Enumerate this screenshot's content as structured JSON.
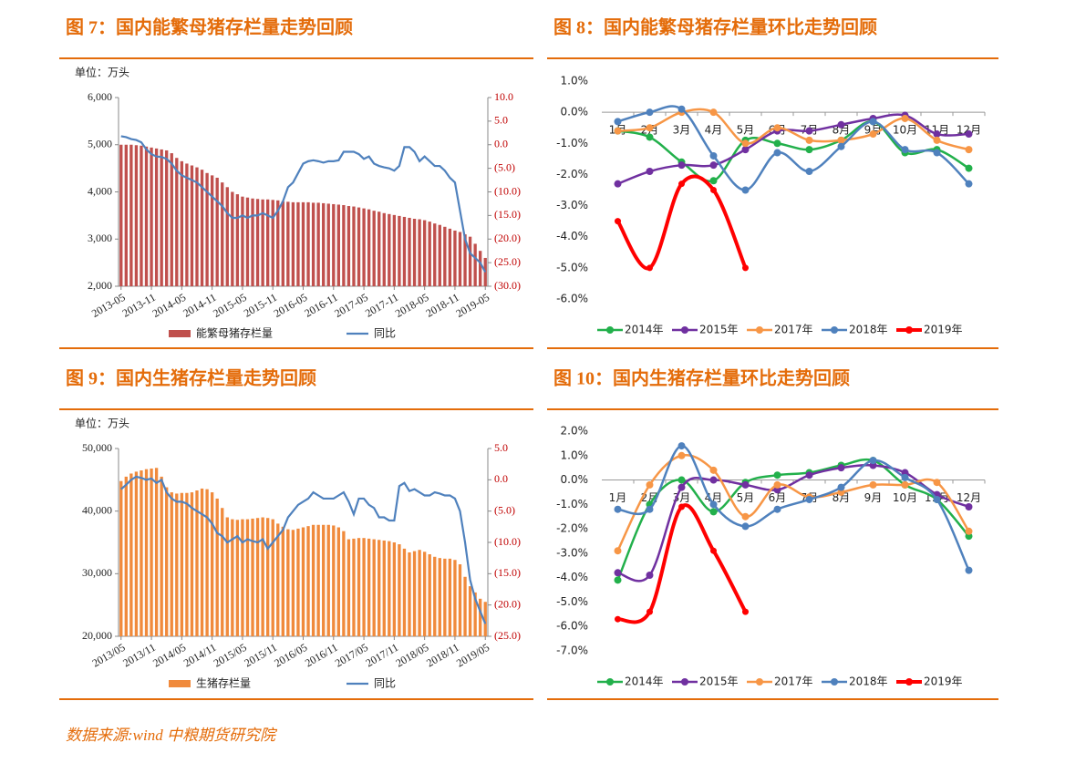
{
  "source": "数据来源:wind 中粮期货研究院",
  "chart_data": [
    {
      "type": "combo",
      "title": "图 7：国内能繁母猪存栏量走势回顾",
      "unit": "单位：万头",
      "categories": [
        "2013-05",
        null,
        null,
        null,
        null,
        null,
        "2013-11",
        null,
        null,
        null,
        null,
        null,
        "2014-05",
        null,
        null,
        null,
        null,
        null,
        "2014-11",
        null,
        null,
        null,
        null,
        null,
        "2015-05",
        null,
        null,
        null,
        null,
        null,
        "2015-11",
        null,
        null,
        null,
        null,
        null,
        "2016-05",
        null,
        null,
        null,
        null,
        null,
        "2016-11",
        null,
        null,
        null,
        null,
        null,
        "2017-05",
        null,
        null,
        null,
        null,
        null,
        "2017-11",
        null,
        null,
        null,
        null,
        null,
        "2018-05",
        null,
        null,
        null,
        null,
        null,
        "2018-11",
        null,
        null,
        null,
        null,
        null,
        "2019-05"
      ],
      "series": [
        {
          "name": "能繁母猪存栏量",
          "type": "bar",
          "color": "#c0504d",
          "values": [
            5000,
            5000,
            5000,
            4990,
            4980,
            4960,
            4940,
            4920,
            4900,
            4880,
            4820,
            4720,
            4650,
            4600,
            4560,
            4520,
            4470,
            4400,
            4350,
            4300,
            4200,
            4100,
            4000,
            3950,
            3900,
            3880,
            3860,
            3850,
            3840,
            3840,
            3830,
            3820,
            3800,
            3790,
            3780,
            3780,
            3780,
            3780,
            3770,
            3770,
            3760,
            3750,
            3740,
            3730,
            3720,
            3700,
            3690,
            3670,
            3650,
            3630,
            3600,
            3580,
            3550,
            3530,
            3510,
            3490,
            3470,
            3450,
            3430,
            3420,
            3400,
            3370,
            3330,
            3300,
            3260,
            3220,
            3180,
            3150,
            3100,
            3050,
            2900,
            2750,
            2600
          ]
        },
        {
          "name": "同比",
          "type": "line",
          "color": "#4f81bd",
          "axis": "y2",
          "values": [
            1.8,
            1.6,
            1.2,
            1.0,
            0.5,
            -1.0,
            -2.0,
            -2.5,
            -2.6,
            -3.0,
            -4.0,
            -5.5,
            -6.5,
            -7.0,
            -7.5,
            -8.0,
            -9.0,
            -10.0,
            -11.0,
            -12.0,
            -13.0,
            -14.5,
            -15.5,
            -15.5,
            -15.0,
            -15.5,
            -15.0,
            -15.0,
            -14.5,
            -15.0,
            -15.5,
            -14.0,
            -12.0,
            -9.0,
            -8.0,
            -6.0,
            -4.0,
            -3.5,
            -3.3,
            -3.5,
            -3.8,
            -3.5,
            -3.5,
            -3.3,
            -1.5,
            -1.5,
            -1.5,
            -2.0,
            -3.0,
            -2.5,
            -4.0,
            -4.5,
            -4.8,
            -5.0,
            -5.5,
            -4.5,
            -0.5,
            -0.5,
            -1.5,
            -3.5,
            -2.5,
            -3.5,
            -4.5,
            -4.5,
            -5.5,
            -7.0,
            -8.0,
            -14.0,
            -20.0,
            -23.0,
            -24.0,
            -25.0,
            -27.0
          ]
        }
      ],
      "ylim": [
        2000,
        6000
      ],
      "yticks": [
        {
          "value": 2000,
          "label": "2,000"
        },
        {
          "value": 3000,
          "label": "3,000"
        },
        {
          "value": 4000,
          "label": "4,000"
        },
        {
          "value": 5000,
          "label": "5,000"
        },
        {
          "value": 6000,
          "label": "6,000"
        }
      ],
      "y2lim": [
        -30,
        10
      ],
      "y2ticks": [
        {
          "value": -30,
          "label": "(30.0)"
        },
        {
          "value": -25,
          "label": "(25.0)"
        },
        {
          "value": -20,
          "label": "(20.0)"
        },
        {
          "value": -15,
          "label": "(15.0)"
        },
        {
          "value": -10,
          "label": "(10.0)"
        },
        {
          "value": -5,
          "label": "(5.0)"
        },
        {
          "value": 0,
          "label": "0.0"
        },
        {
          "value": 5,
          "label": "5.0"
        },
        {
          "value": 10,
          "label": "10.0"
        }
      ]
    },
    {
      "type": "line",
      "title": "图 8：国内能繁母猪存栏量环比走势回顾",
      "categories": [
        "1月",
        "2月",
        "3月",
        "4月",
        "5月",
        "6月",
        "7月",
        "8月",
        "9月",
        "10月",
        "11月",
        "12月"
      ],
      "series": [
        {
          "name": "2014年",
          "color": "#22b04b",
          "values": [
            -0.6,
            -0.8,
            -1.6,
            -2.2,
            -0.9,
            -1.0,
            -1.2,
            -0.9,
            -0.3,
            -1.3,
            -1.2,
            -1.8
          ]
        },
        {
          "name": "2015年",
          "color": "#7030a0",
          "values": [
            -2.3,
            -1.9,
            -1.7,
            -1.7,
            -1.2,
            -0.6,
            -0.6,
            -0.4,
            -0.2,
            -0.1,
            -0.7,
            -0.7
          ]
        },
        {
          "name": "2017年",
          "color": "#f79646",
          "values": [
            -0.6,
            -0.5,
            0.0,
            0.0,
            -1.0,
            -0.5,
            -0.9,
            -0.9,
            -0.7,
            -0.2,
            -0.9,
            -1.2
          ]
        },
        {
          "name": "2018年",
          "color": "#4f81bd",
          "values": [
            -0.3,
            0.0,
            0.1,
            -1.4,
            -2.5,
            -1.3,
            -1.9,
            -1.1,
            -0.3,
            -1.2,
            -1.3,
            -2.3
          ]
        },
        {
          "name": "2019年",
          "color": "#ff0000",
          "values": [
            -3.5,
            -5.0,
            -2.3,
            -2.5,
            -5.0,
            null,
            null,
            null,
            null,
            null,
            null,
            null
          ]
        }
      ],
      "ylim": [
        -6,
        1
      ],
      "yticks": [
        {
          "value": -6,
          "label": "-6.0%"
        },
        {
          "value": -5,
          "label": "-5.0%"
        },
        {
          "value": -4,
          "label": "-4.0%"
        },
        {
          "value": -3,
          "label": "-3.0%"
        },
        {
          "value": -2,
          "label": "-2.0%"
        },
        {
          "value": -1,
          "label": "-1.0%"
        },
        {
          "value": 0,
          "label": "0.0%"
        },
        {
          "value": 1,
          "label": "1.0%"
        }
      ]
    },
    {
      "type": "combo",
      "title": "图 9：国内生猪存栏量走势回顾",
      "unit": "单位：万头",
      "categories": [
        "2013/05",
        null,
        null,
        null,
        null,
        null,
        "2013/11",
        null,
        null,
        null,
        null,
        null,
        "2014/05",
        null,
        null,
        null,
        null,
        null,
        "2014/11",
        null,
        null,
        null,
        null,
        null,
        "2015/05",
        null,
        null,
        null,
        null,
        null,
        "2015/11",
        null,
        null,
        null,
        null,
        null,
        "2016/05",
        null,
        null,
        null,
        null,
        null,
        "2016/11",
        null,
        null,
        null,
        null,
        null,
        "2017/05",
        null,
        null,
        null,
        null,
        null,
        "2017/11",
        null,
        null,
        null,
        null,
        null,
        "2018/05",
        null,
        null,
        null,
        null,
        null,
        "2018/11",
        null,
        null,
        null,
        null,
        null,
        "2019/05"
      ],
      "series": [
        {
          "name": "生猪存栏量",
          "type": "bar",
          "color": "#f08a3c",
          "values": [
            44800,
            45500,
            46000,
            46300,
            46500,
            46700,
            46800,
            46900,
            45500,
            43800,
            43000,
            42800,
            42900,
            42900,
            43000,
            43300,
            43600,
            43500,
            43000,
            42000,
            40500,
            39000,
            38700,
            38600,
            38700,
            38700,
            38800,
            38900,
            39000,
            38900,
            38700,
            38000,
            37500,
            37100,
            37000,
            37200,
            37400,
            37600,
            37800,
            37800,
            37800,
            37800,
            37700,
            37400,
            36800,
            35500,
            35600,
            35700,
            35700,
            35600,
            35500,
            35400,
            35300,
            35200,
            35000,
            34700,
            34000,
            33400,
            33600,
            33800,
            33500,
            33100,
            32700,
            32500,
            32400,
            32400,
            32200,
            31500,
            29500,
            28000,
            27000,
            26000,
            25500
          ]
        },
        {
          "name": "同比",
          "type": "line",
          "color": "#4f81bd",
          "axis": "y2",
          "values": [
            -1.5,
            -0.8,
            0.0,
            0.5,
            0.3,
            0.0,
            0.2,
            -0.5,
            0.0,
            -2.0,
            -3.0,
            -3.5,
            -3.5,
            -3.8,
            -4.5,
            -5.0,
            -5.5,
            -6.0,
            -7.0,
            -8.5,
            -9.0,
            -10.0,
            -9.5,
            -9.0,
            -10.0,
            -9.5,
            -9.8,
            -10.0,
            -9.5,
            -11.0,
            -10.0,
            -9.0,
            -8.0,
            -6.0,
            -5.0,
            -4.0,
            -3.5,
            -3.0,
            -2.0,
            -2.5,
            -3.0,
            -3.0,
            -3.0,
            -2.5,
            -2.0,
            -3.5,
            -5.5,
            -3.0,
            -3.0,
            -4.0,
            -4.5,
            -6.0,
            -6.0,
            -6.5,
            -6.5,
            -1.0,
            -0.5,
            -1.8,
            -1.5,
            -2.0,
            -2.5,
            -2.5,
            -2.0,
            -2.2,
            -2.5,
            -2.5,
            -3.0,
            -5.0,
            -10.0,
            -16.0,
            -19.0,
            -21.0,
            -23.0
          ]
        }
      ],
      "ylim": [
        20000,
        50000
      ],
      "yticks": [
        {
          "value": 20000,
          "label": "20,000"
        },
        {
          "value": 30000,
          "label": "30,000"
        },
        {
          "value": 40000,
          "label": "40,000"
        },
        {
          "value": 50000,
          "label": "50,000"
        }
      ],
      "y2lim": [
        -25,
        5
      ],
      "y2ticks": [
        {
          "value": -25,
          "label": "(25.0)"
        },
        {
          "value": -20,
          "label": "(20.0)"
        },
        {
          "value": -15,
          "label": "(15.0)"
        },
        {
          "value": -10,
          "label": "(10.0)"
        },
        {
          "value": -5,
          "label": "(5.0)"
        },
        {
          "value": 0,
          "label": "0.0"
        },
        {
          "value": 5,
          "label": "5.0"
        }
      ]
    },
    {
      "type": "line",
      "title": "图 10：国内生猪存栏量环比走势回顾",
      "categories": [
        "1月",
        "2月",
        "3月",
        "4月",
        "5月",
        "6月",
        "7月",
        "8月",
        "9月",
        "10月",
        "11月",
        "12月"
      ],
      "series": [
        {
          "name": "2014年",
          "color": "#22b04b",
          "values": [
            -4.1,
            -1.0,
            0.0,
            -1.3,
            -0.1,
            0.2,
            0.3,
            0.6,
            0.8,
            -0.2,
            -0.8,
            -2.3
          ]
        },
        {
          "name": "2015年",
          "color": "#7030a0",
          "values": [
            -3.8,
            -3.9,
            -0.3,
            0.0,
            -0.2,
            -0.4,
            0.2,
            0.5,
            0.6,
            0.3,
            -0.6,
            -1.1
          ]
        },
        {
          "name": "2017年",
          "color": "#f79646",
          "values": [
            -2.9,
            -0.2,
            1.0,
            0.4,
            -1.5,
            -0.2,
            -0.7,
            -0.5,
            -0.2,
            -0.2,
            -0.1,
            -2.1
          ]
        },
        {
          "name": "2018年",
          "color": "#4f81bd",
          "values": [
            -1.2,
            -1.2,
            1.4,
            -1.0,
            -1.9,
            -1.2,
            -0.8,
            -0.3,
            0.8,
            0.1,
            -0.8,
            -3.7
          ]
        },
        {
          "name": "2019年",
          "color": "#ff0000",
          "values": [
            -5.7,
            -5.4,
            -1.1,
            -2.9,
            -5.4,
            null,
            null,
            null,
            null,
            null,
            null,
            null
          ]
        }
      ],
      "ylim": [
        -7,
        2
      ],
      "yticks": [
        {
          "value": -7,
          "label": "-7.0%"
        },
        {
          "value": -6,
          "label": "-6.0%"
        },
        {
          "value": -5,
          "label": "-5.0%"
        },
        {
          "value": -4,
          "label": "-4.0%"
        },
        {
          "value": -3,
          "label": "-3.0%"
        },
        {
          "value": -2,
          "label": "-2.0%"
        },
        {
          "value": -1,
          "label": "-1.0%"
        },
        {
          "value": 0,
          "label": "0.0%"
        },
        {
          "value": 1,
          "label": "1.0%"
        },
        {
          "value": 2,
          "label": "2.0%"
        }
      ]
    }
  ]
}
